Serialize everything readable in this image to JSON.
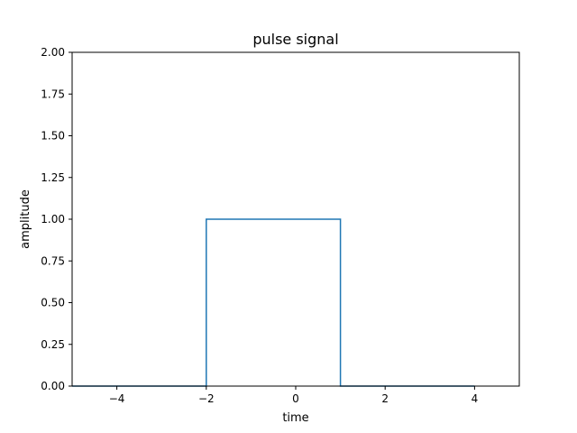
{
  "chart_data": {
    "type": "line",
    "title": "pulse signal",
    "xlabel": "time",
    "ylabel": "amplitude",
    "xlim": [
      -5,
      5
    ],
    "ylim": [
      0,
      2
    ],
    "x_ticks": [
      -4,
      -2,
      0,
      2,
      4
    ],
    "x_tick_labels": [
      "−4",
      "−2",
      "0",
      "2",
      "4"
    ],
    "y_ticks": [
      0,
      0.25,
      0.5,
      0.75,
      1.0,
      1.25,
      1.5,
      1.75,
      2.0
    ],
    "y_tick_labels": [
      "0.00",
      "0.25",
      "0.50",
      "0.75",
      "1.00",
      "1.25",
      "1.50",
      "1.75",
      "2.00"
    ],
    "grid": false,
    "series": [
      {
        "x": [
          -5,
          -2,
          -2,
          1,
          1,
          4
        ],
        "y": [
          0,
          0,
          1,
          1,
          0,
          0
        ],
        "color": "#1f77b4"
      }
    ]
  }
}
